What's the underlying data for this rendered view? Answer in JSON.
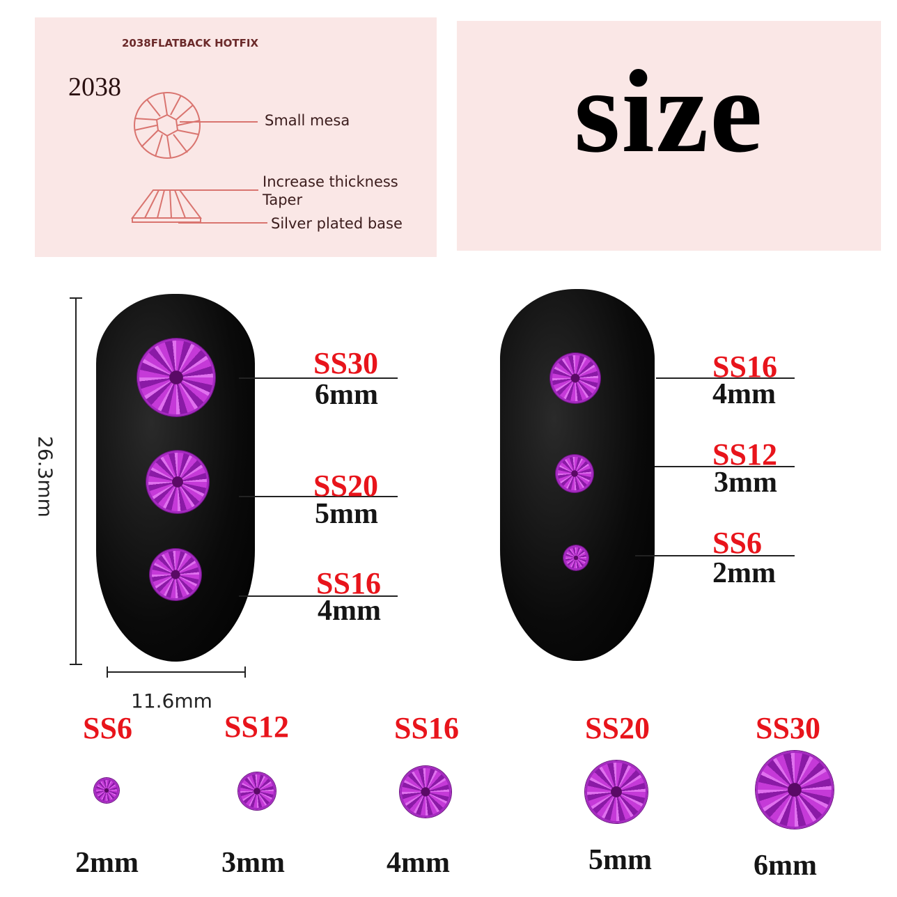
{
  "diagram": {
    "heading": "2038FLATBACK HOTFIX",
    "model": "2038",
    "labels": [
      "Small mesa",
      "Increase thickness",
      "Taper",
      "Silver plated base"
    ]
  },
  "title": "size",
  "nail_dimensions": {
    "height": "26.3mm",
    "width": "11.6mm"
  },
  "left_nail": [
    {
      "ss": "SS30",
      "mm": "6mm"
    },
    {
      "ss": "SS20",
      "mm": "5mm"
    },
    {
      "ss": "SS16",
      "mm": "4mm"
    }
  ],
  "right_nail": [
    {
      "ss": "SS16",
      "mm": "4mm"
    },
    {
      "ss": "SS12",
      "mm": "3mm"
    },
    {
      "ss": "SS6",
      "mm": "2mm"
    }
  ],
  "size_row": [
    {
      "ss": "SS6",
      "mm": "2mm"
    },
    {
      "ss": "SS12",
      "mm": "3mm"
    },
    {
      "ss": "SS16",
      "mm": "4mm"
    },
    {
      "ss": "SS20",
      "mm": "5mm"
    },
    {
      "ss": "SS30",
      "mm": "6mm"
    }
  ],
  "colors": {
    "label_red": "#e8141b",
    "panel_pink": "#fae7e6",
    "gem_purple": "#c53ad8",
    "diagram_line": "#d9746f"
  }
}
